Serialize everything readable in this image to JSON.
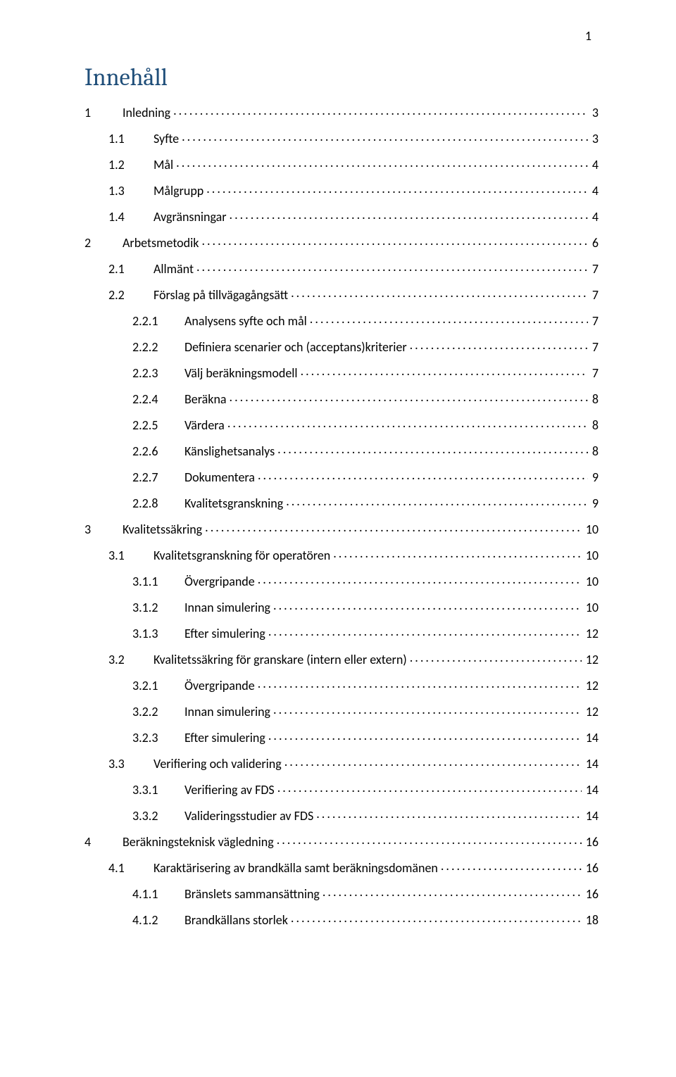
{
  "page_number": "1",
  "heading": "Innehåll",
  "colors": {
    "heading": "#1f4e79",
    "text": "#000000",
    "background": "#ffffff"
  },
  "typography": {
    "heading_family": "Cambria",
    "heading_size_pt": 26,
    "body_family": "Calibri",
    "body_size_pt": 11
  },
  "entries": [
    {
      "level": 1,
      "num": "1",
      "title": "Inledning",
      "page": "3"
    },
    {
      "level": 2,
      "num": "1.1",
      "title": "Syfte",
      "page": "3"
    },
    {
      "level": 2,
      "num": "1.2",
      "title": "Mål",
      "page": "4"
    },
    {
      "level": 2,
      "num": "1.3",
      "title": "Målgrupp",
      "page": "4"
    },
    {
      "level": 2,
      "num": "1.4",
      "title": "Avgränsningar",
      "page": "4"
    },
    {
      "level": 1,
      "num": "2",
      "title": "Arbetsmetodik",
      "page": "6"
    },
    {
      "level": 2,
      "num": "2.1",
      "title": "Allmänt",
      "page": "7"
    },
    {
      "level": 2,
      "num": "2.2",
      "title": "Förslag på tillvägagångsätt",
      "page": "7"
    },
    {
      "level": 3,
      "num": "2.2.1",
      "title": "Analysens syfte och mål",
      "page": "7"
    },
    {
      "level": 3,
      "num": "2.2.2",
      "title": "Definiera scenarier och (acceptans)kriterier",
      "page": "7"
    },
    {
      "level": 3,
      "num": "2.2.3",
      "title": "Välj beräkningsmodell",
      "page": "7"
    },
    {
      "level": 3,
      "num": "2.2.4",
      "title": "Beräkna",
      "page": "8"
    },
    {
      "level": 3,
      "num": "2.2.5",
      "title": "Värdera",
      "page": "8"
    },
    {
      "level": 3,
      "num": "2.2.6",
      "title": "Känslighetsanalys",
      "page": "8"
    },
    {
      "level": 3,
      "num": "2.2.7",
      "title": "Dokumentera",
      "page": "9"
    },
    {
      "level": 3,
      "num": "2.2.8",
      "title": "Kvalitetsgranskning",
      "page": "9"
    },
    {
      "level": 1,
      "num": "3",
      "title": "Kvalitetssäkring",
      "page": "10"
    },
    {
      "level": 2,
      "num": "3.1",
      "title": "Kvalitetsgranskning för operatören",
      "page": "10"
    },
    {
      "level": 3,
      "num": "3.1.1",
      "title": "Övergripande",
      "page": "10"
    },
    {
      "level": 3,
      "num": "3.1.2",
      "title": "Innan simulering",
      "page": "10"
    },
    {
      "level": 3,
      "num": "3.1.3",
      "title": "Efter simulering",
      "page": "12"
    },
    {
      "level": 2,
      "num": "3.2",
      "title": "Kvalitetssäkring för granskare (intern eller extern)",
      "page": "12"
    },
    {
      "level": 3,
      "num": "3.2.1",
      "title": "Övergripande",
      "page": "12"
    },
    {
      "level": 3,
      "num": "3.2.2",
      "title": "Innan simulering",
      "page": "12"
    },
    {
      "level": 3,
      "num": "3.2.3",
      "title": "Efter simulering",
      "page": "14"
    },
    {
      "level": 2,
      "num": "3.3",
      "title": "Verifiering och validering",
      "page": "14"
    },
    {
      "level": 3,
      "num": "3.3.1",
      "title": "Verifiering av FDS",
      "page": "14"
    },
    {
      "level": 3,
      "num": "3.3.2",
      "title": "Valideringsstudier av FDS",
      "page": "14"
    },
    {
      "level": 1,
      "num": "4",
      "title": "Beräkningsteknisk vägledning",
      "page": "16"
    },
    {
      "level": 2,
      "num": "4.1",
      "title": "Karaktärisering av brandkälla samt beräkningsdomänen",
      "page": "16"
    },
    {
      "level": 3,
      "num": "4.1.1",
      "title": "Bränslets sammansättning",
      "page": "16"
    },
    {
      "level": 3,
      "num": "4.1.2",
      "title": "Brandkällans storlek",
      "page": "18"
    }
  ]
}
